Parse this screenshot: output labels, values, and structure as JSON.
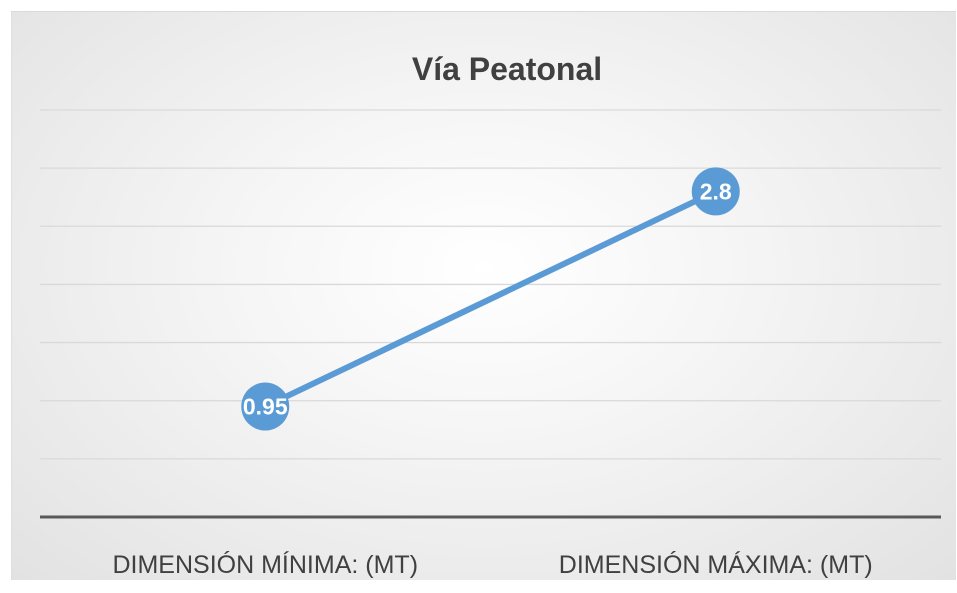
{
  "chart_data": {
    "type": "line",
    "title": "Vía Peatonal",
    "categories": [
      "DIMENSIÓN MÍNIMA: (MT)",
      "DIMENSIÓN MÁXIMA: (MT)"
    ],
    "series": [
      {
        "values": [
          0.95,
          2.8
        ],
        "data_labels": [
          "0.95",
          "2.8"
        ],
        "color": "#5b9bd5"
      }
    ],
    "ylim": [
      0,
      3.5
    ],
    "y_major_step": 0.5,
    "grid": true,
    "legend": "none",
    "gridline_color": "#d9d9d9",
    "axis_color": "#595959"
  }
}
